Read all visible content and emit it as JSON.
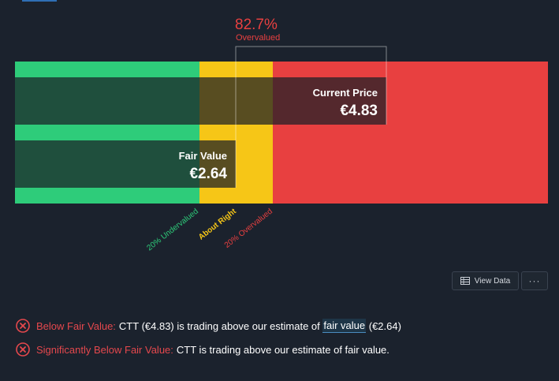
{
  "chart_data": {
    "type": "valuation-range-bar",
    "overvalued_pct_value": "82.7%",
    "overvalued_pct_label": "Overvalued",
    "current_price_label": "Current Price",
    "current_price_value": "€4.83",
    "current_price": 4.83,
    "fair_value_label": "Fair Value",
    "fair_value_value": "€2.64",
    "fair_value": 2.64,
    "zones": [
      {
        "name": "20% Undervalued",
        "color": "#2ecc7a"
      },
      {
        "name": "About Right",
        "color": "#f6c617"
      },
      {
        "name": "20% Overvalued",
        "color": "#e84040"
      }
    ]
  },
  "actions": {
    "view_data_label": "View Data",
    "more_label": "···"
  },
  "checks": [
    {
      "label": "Below Fair Value:",
      "text_before": "CTT (€4.83) is trading above our estimate of",
      "link": "fair value",
      "text_after": "(€2.64)"
    },
    {
      "label": "Significantly Below Fair Value:",
      "text": "CTT is trading above our estimate of fair value."
    }
  ],
  "colors": {
    "background": "#1b222d",
    "green": "#2ecc7a",
    "yellow": "#f6c617",
    "red": "#e84040",
    "fail_icon": "#e5484d"
  }
}
